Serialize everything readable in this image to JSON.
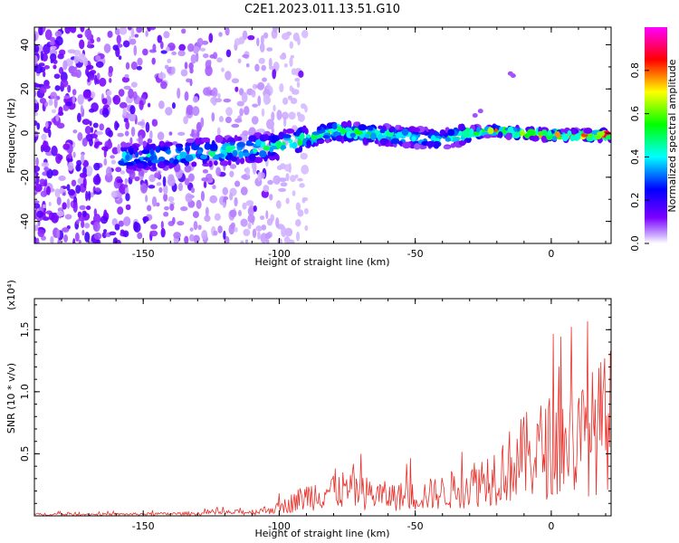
{
  "title": "C2E1.2023.011.13.51.G10",
  "chart_data": [
    {
      "type": "heatmap",
      "xlabel": "Height of straight line (km)",
      "ylabel": "Frequency (Hz)",
      "xlim": [
        -190,
        22
      ],
      "ylim": [
        -50,
        48
      ],
      "x_ticks": [
        "-150",
        "-100",
        "-50",
        "0"
      ],
      "y_ticks": [
        "-40",
        "-20",
        "0",
        "20",
        "40"
      ],
      "colorbar": {
        "label": "Normalized spectral amplitude",
        "range": [
          0.0,
          1.0
        ],
        "ticks": [
          "0.0",
          "0.2",
          "0.4",
          "0.6",
          "0.8"
        ],
        "colors": [
          "#ffffff",
          "#7a00ff",
          "#0000ff",
          "#00ffff",
          "#00ff00",
          "#ffff00",
          "#ff0000",
          "#ff00ff"
        ]
      },
      "ridge": {
        "description_values_x": [
          -155,
          -140,
          -120,
          -100,
          -80,
          -60,
          -40,
          -30,
          -20,
          -10,
          0,
          10,
          20
        ],
        "description_values_y": [
          -11,
          -10,
          -8,
          -6,
          1,
          -1,
          -3,
          0,
          1,
          0,
          -1,
          -1,
          -1
        ],
        "amplitude": [
          0.35,
          0.4,
          0.45,
          0.45,
          0.55,
          0.5,
          0.45,
          0.6,
          0.7,
          0.8,
          0.8,
          0.85,
          0.9
        ]
      },
      "noise_region_x": [
        -190,
        -105
      ]
    },
    {
      "type": "line",
      "xlabel": "Height of straight line (km)",
      "ylabel": "SNR (10 * v/v)",
      "y_scale_label": "(x10⁴)",
      "xlim": [
        -190,
        22
      ],
      "ylim": [
        0,
        1.75
      ],
      "x_ticks": [
        "-150",
        "-100",
        "-50",
        "0"
      ],
      "y_ticks": [
        "0.5",
        "1.0",
        "1.5"
      ],
      "series": [
        {
          "color": "#e8302a",
          "envelope_x": [
            -190,
            -160,
            -130,
            -110,
            -100,
            -90,
            -80,
            -70,
            -60,
            -50,
            -40,
            -30,
            -20,
            -10,
            0,
            10,
            20,
            22
          ],
          "envelope_y": [
            0.02,
            0.02,
            0.03,
            0.05,
            0.1,
            0.25,
            0.35,
            0.3,
            0.25,
            0.25,
            0.3,
            0.4,
            0.55,
            0.75,
            0.9,
            0.95,
            1.2,
            1.25
          ]
        }
      ]
    }
  ]
}
